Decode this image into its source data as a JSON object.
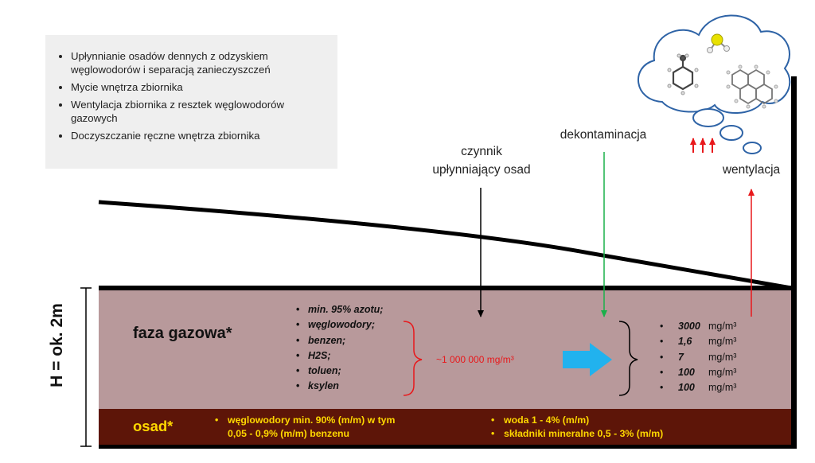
{
  "info_box": {
    "items": [
      "Upłynnianie osadów dennych z odzyskiem węglowodorów i separacją zanieczyszczeń",
      "Mycie wnętrza zbiornika",
      "Wentylacja zbiornika z resztek węglowodorów gazowych",
      "Doczyszczanie ręczne wnętrza zbiornika"
    ]
  },
  "labels": {
    "fluidizer_line1": "czynnik",
    "fluidizer_line2": "upłynniający osad",
    "decontamination": "dekontaminacja",
    "ventilation": "wentylacja",
    "height": "H = ok. 2m",
    "gas_phase": "faza gazowa*",
    "sediment": "osad*"
  },
  "gas_components": [
    "min. 95% azotu;",
    "węglowodory;",
    "benzen;",
    "H2S;",
    "toluen;",
    "ksylen"
  ],
  "concentration": "~1 000 000 mg/m³",
  "measured_values": [
    {
      "value": "3000",
      "unit": "mg/m³"
    },
    {
      "value": "1,6",
      "unit": "mg/m³"
    },
    {
      "value": "7",
      "unit": "mg/m³"
    },
    {
      "value": "100",
      "unit": "mg/m³"
    },
    {
      "value": "100",
      "unit": "mg/m³"
    }
  ],
  "sediment_composition": {
    "left_line1": "węglowodory min. 90% (m/m) w tym",
    "left_line2": "0,05 - 0,9% (m/m) benzenu",
    "right_line1": "woda 1 - 4% (m/m)",
    "right_line2": "składniki mineralne 0,5 - 3% (m/m)"
  },
  "colors": {
    "gas_phase": "#b8999b",
    "sediment": "#5d1508",
    "sediment_text": "#ffd800",
    "red_accent": "#e8191c",
    "green_arrow": "#1ab04a",
    "blue_arrow": "#21b2ee",
    "cloud_outline": "#2e63a6"
  },
  "icons": [
    "benzene-molecule-icon",
    "toluene-molecule-icon",
    "hydrogen-sulfide-molecule-icon",
    "polycyclic-molecule-icon"
  ]
}
